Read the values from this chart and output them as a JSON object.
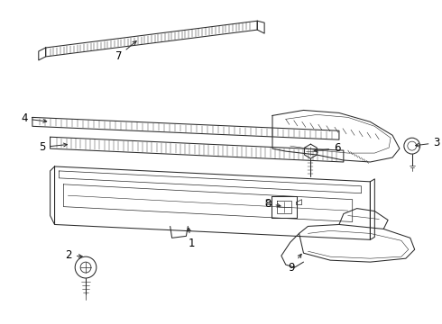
{
  "bg_color": "#ffffff",
  "line_color": "#2a2a2a",
  "label_color": "#000000",
  "lw": 0.75
}
